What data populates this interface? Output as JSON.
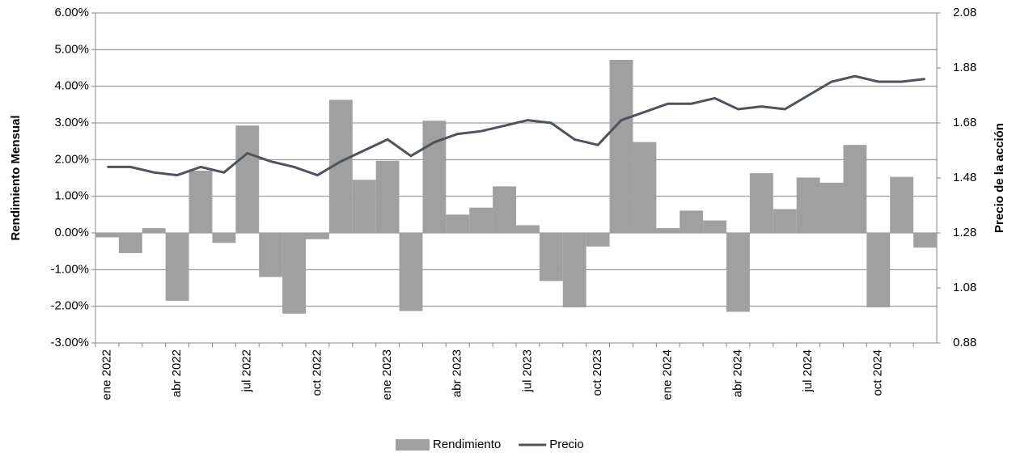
{
  "chart_data": {
    "type": "combo",
    "y_label": "Rendimiento Mensual",
    "y2_label": "Precio de la acción",
    "categories": [
      "ene 2022",
      null,
      null,
      "abr 2022",
      null,
      null,
      "jul 2022",
      null,
      null,
      "oct 2022",
      null,
      null,
      "ene 2023",
      null,
      null,
      "abr 2023",
      null,
      null,
      "jul 2023",
      null,
      null,
      "oct 2023",
      null,
      null,
      "ene 2024",
      null,
      null,
      "abr 2024",
      null,
      null,
      "jul 2024",
      null,
      null,
      "oct 2024",
      null,
      null
    ],
    "series": [
      {
        "name": "Rendimiento",
        "type": "bar",
        "color": "#a0a0a0",
        "values": [
          -0.12,
          -0.55,
          0.13,
          -1.85,
          1.7,
          -0.27,
          2.93,
          -1.2,
          -2.2,
          -0.17,
          3.63,
          1.45,
          1.97,
          -2.13,
          3.06,
          0.5,
          0.69,
          1.27,
          0.21,
          -1.31,
          -2.03,
          -0.37,
          4.72,
          2.48,
          0.13,
          0.61,
          0.34,
          -2.15,
          1.63,
          0.65,
          1.51,
          1.37,
          2.4,
          -2.03,
          1.53,
          -0.4
        ]
      },
      {
        "name": "Precio",
        "type": "line",
        "axis": "y2",
        "color": "#4d545c",
        "values": [
          1.52,
          1.52,
          1.5,
          1.49,
          1.52,
          1.5,
          1.57,
          1.54,
          1.52,
          1.49,
          1.54,
          1.58,
          1.62,
          1.56,
          1.61,
          1.64,
          1.65,
          1.67,
          1.69,
          1.68,
          1.62,
          1.6,
          1.69,
          1.72,
          1.75,
          1.75,
          1.77,
          1.73,
          1.74,
          1.73,
          1.78,
          1.83,
          1.85,
          1.83,
          1.83,
          1.84
        ]
      }
    ],
    "ylim": [
      -3,
      6
    ],
    "yticks": [
      {
        "value": -3,
        "label": "-3.00%"
      },
      {
        "value": -2,
        "label": "-2.00%"
      },
      {
        "value": -1,
        "label": "-1.00%"
      },
      {
        "value": 0,
        "label": "0.00%"
      },
      {
        "value": 1,
        "label": "1.00%"
      },
      {
        "value": 2,
        "label": "2.00%"
      },
      {
        "value": 3,
        "label": "3.00%"
      },
      {
        "value": 4,
        "label": "4.00%"
      },
      {
        "value": 5,
        "label": "5.00%"
      },
      {
        "value": 6,
        "label": "6.00%"
      }
    ],
    "y2lim": [
      0.88,
      2.08
    ],
    "y2ticks": [
      0.88,
      1.08,
      1.28,
      1.48,
      1.68,
      1.88,
      2.08
    ],
    "grid": true,
    "legend": "bottom"
  }
}
